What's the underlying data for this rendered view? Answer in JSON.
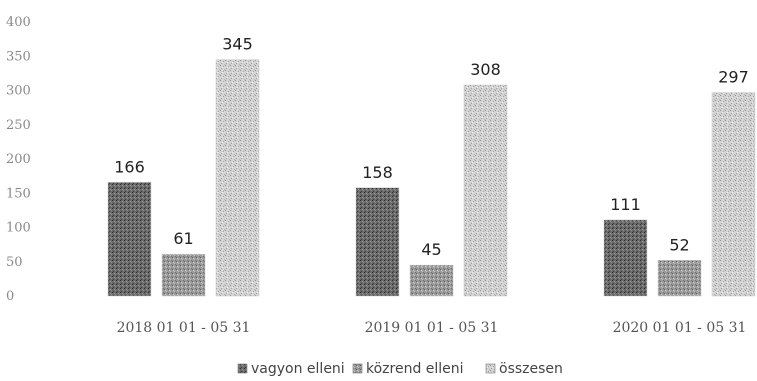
{
  "chart_data": {
    "type": "bar",
    "title": "",
    "xlabel": "",
    "ylabel": "",
    "categories": [
      "2018 01 01 - 05 31",
      "2019 01 01 - 05 31",
      "2020 01 01 - 05 31"
    ],
    "series": [
      {
        "name": "vagyon elleni",
        "values": [
          166,
          158,
          111
        ],
        "color": "#5c5c5c"
      },
      {
        "name": "közrend elleni",
        "values": [
          61,
          45,
          52
        ],
        "color": "#8c8c8c"
      },
      {
        "name": "összesen",
        "values": [
          345,
          308,
          297
        ],
        "color": "#b9b9b9"
      }
    ],
    "yticks": [
      "0",
      "50",
      "100",
      "150",
      "200",
      "250",
      "300",
      "350",
      "400"
    ],
    "ylim": [
      0,
      400
    ],
    "grid": false,
    "legend_position": "bottom",
    "data_labels": true
  }
}
